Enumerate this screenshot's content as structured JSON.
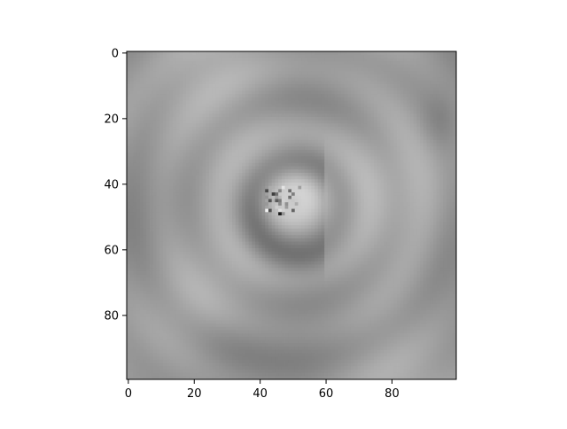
{
  "chart_data": {
    "type": "heatmap",
    "title": "",
    "xlabel": "",
    "ylabel": "",
    "colormap": "gray",
    "grid": false,
    "shape": [
      100,
      100
    ],
    "xlim": [
      -0.5,
      99.5
    ],
    "ylim": [
      99.5,
      -0.5
    ],
    "x_ticks": [
      0,
      20,
      40,
      60,
      80
    ],
    "y_ticks": [
      0,
      20,
      40,
      60,
      80
    ],
    "x_tick_labels": [
      "0",
      "20",
      "40",
      "60",
      "80"
    ],
    "y_tick_labels": [
      "0",
      "20",
      "40",
      "60",
      "80"
    ],
    "value_range": [
      0,
      1
    ],
    "description_of_content": [],
    "features": {
      "background_level": 0.62,
      "center": [
        50,
        45
      ],
      "bright_blob": {
        "center": [
          48,
          38
        ],
        "level": 0.85
      },
      "dark_ring": {
        "center": [
          52,
          48
        ],
        "level": 0.35
      },
      "noise_spot": {
        "center": [
          47,
          45
        ],
        "extent": [
          12,
          10
        ]
      }
    }
  }
}
